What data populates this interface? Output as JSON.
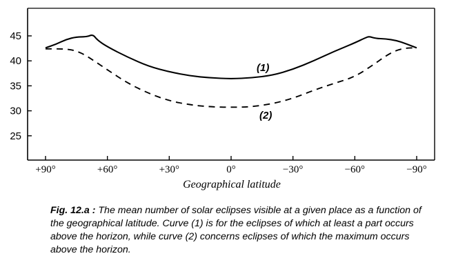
{
  "chart_data": {
    "type": "line",
    "xlabel": "Geographical latitude",
    "x_ticks": [
      {
        "value": 90,
        "label": "+90°"
      },
      {
        "value": 60,
        "label": "+60°"
      },
      {
        "value": 30,
        "label": "+30°"
      },
      {
        "value": 0,
        "label": "0°"
      },
      {
        "value": -30,
        "label": "−30°"
      },
      {
        "value": -60,
        "label": "−60°"
      },
      {
        "value": -90,
        "label": "−90°"
      }
    ],
    "y_ticks": [
      25,
      30,
      35,
      40,
      45
    ],
    "xlim": [
      90,
      -90
    ],
    "ylim": [
      20,
      49
    ],
    "series": [
      {
        "name": "(1)",
        "style": "solid",
        "x": [
          90,
          85,
          80,
          75,
          70,
          67,
          65,
          60,
          50,
          40,
          30,
          20,
          10,
          0,
          -10,
          -20,
          -30,
          -40,
          -50,
          -60,
          -65,
          -67,
          -70,
          -75,
          -80,
          -85,
          -90
        ],
        "y": [
          42.6,
          43.3,
          44.3,
          44.8,
          44.8,
          45.3,
          44.2,
          42.8,
          40.7,
          38.9,
          37.8,
          37.0,
          36.6,
          36.4,
          36.6,
          37.1,
          38.3,
          40.0,
          41.9,
          43.6,
          44.6,
          44.9,
          44.5,
          44.4,
          44.1,
          43.4,
          42.6
        ]
      },
      {
        "name": "(2)",
        "style": "dashed",
        "x": [
          90,
          80,
          75,
          70,
          60,
          50,
          40,
          30,
          20,
          10,
          0,
          -10,
          -20,
          -30,
          -40,
          -50,
          -60,
          -70,
          -75,
          -80,
          -85,
          -90
        ],
        "y": [
          42.4,
          42.4,
          42.0,
          41.0,
          38.2,
          35.5,
          33.5,
          32.0,
          31.2,
          30.8,
          30.7,
          30.8,
          31.4,
          32.5,
          34.1,
          35.5,
          36.8,
          39.5,
          41.0,
          42.1,
          42.6,
          42.6
        ]
      }
    ],
    "curve_labels": [
      "(1)",
      "(2)"
    ]
  },
  "caption": {
    "fig_label": "Fig. 12.a :",
    "text": "The mean number of solar eclipses visible at a given place as a function of the geographical latitude. Curve (1) is for the eclipses of which at least a part occurs above the horizon, while curve (2) concerns eclipses of which the maximum occurs above the horizon."
  }
}
